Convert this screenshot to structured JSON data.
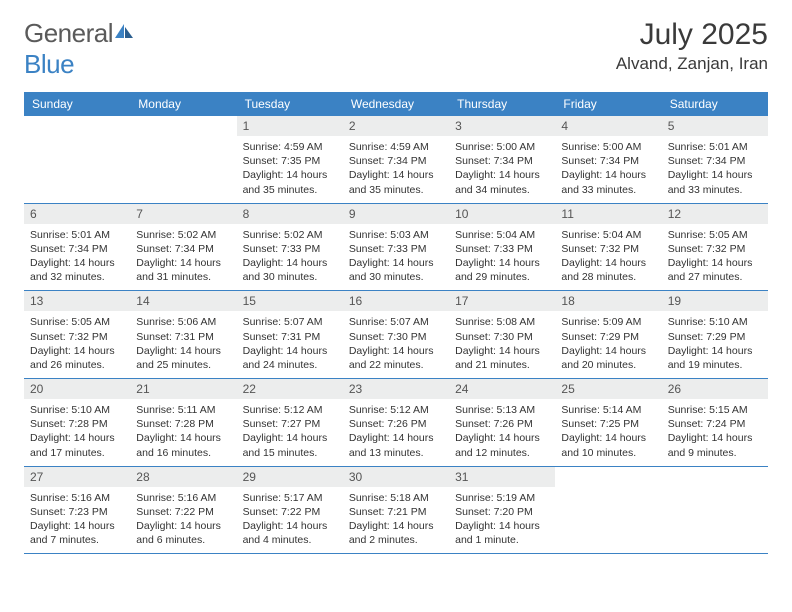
{
  "brand": {
    "word1": "General",
    "word2": "Blue"
  },
  "title": "July 2025",
  "location": "Alvand, Zanjan, Iran",
  "colors": {
    "header_bg": "#3b82c4",
    "header_text": "#ffffff",
    "daynum_bg": "#eceded",
    "cell_border": "#3b82c4",
    "brand_gray": "#5a5a5a",
    "brand_blue": "#3b82c4"
  },
  "dayNames": [
    "Sunday",
    "Monday",
    "Tuesday",
    "Wednesday",
    "Thursday",
    "Friday",
    "Saturday"
  ],
  "weeks": [
    [
      {
        "n": "",
        "sr": "",
        "ss": "",
        "dl": ""
      },
      {
        "n": "",
        "sr": "",
        "ss": "",
        "dl": ""
      },
      {
        "n": "1",
        "sr": "4:59 AM",
        "ss": "7:35 PM",
        "dl": "14 hours and 35 minutes."
      },
      {
        "n": "2",
        "sr": "4:59 AM",
        "ss": "7:34 PM",
        "dl": "14 hours and 35 minutes."
      },
      {
        "n": "3",
        "sr": "5:00 AM",
        "ss": "7:34 PM",
        "dl": "14 hours and 34 minutes."
      },
      {
        "n": "4",
        "sr": "5:00 AM",
        "ss": "7:34 PM",
        "dl": "14 hours and 33 minutes."
      },
      {
        "n": "5",
        "sr": "5:01 AM",
        "ss": "7:34 PM",
        "dl": "14 hours and 33 minutes."
      }
    ],
    [
      {
        "n": "6",
        "sr": "5:01 AM",
        "ss": "7:34 PM",
        "dl": "14 hours and 32 minutes."
      },
      {
        "n": "7",
        "sr": "5:02 AM",
        "ss": "7:34 PM",
        "dl": "14 hours and 31 minutes."
      },
      {
        "n": "8",
        "sr": "5:02 AM",
        "ss": "7:33 PM",
        "dl": "14 hours and 30 minutes."
      },
      {
        "n": "9",
        "sr": "5:03 AM",
        "ss": "7:33 PM",
        "dl": "14 hours and 30 minutes."
      },
      {
        "n": "10",
        "sr": "5:04 AM",
        "ss": "7:33 PM",
        "dl": "14 hours and 29 minutes."
      },
      {
        "n": "11",
        "sr": "5:04 AM",
        "ss": "7:32 PM",
        "dl": "14 hours and 28 minutes."
      },
      {
        "n": "12",
        "sr": "5:05 AM",
        "ss": "7:32 PM",
        "dl": "14 hours and 27 minutes."
      }
    ],
    [
      {
        "n": "13",
        "sr": "5:05 AM",
        "ss": "7:32 PM",
        "dl": "14 hours and 26 minutes."
      },
      {
        "n": "14",
        "sr": "5:06 AM",
        "ss": "7:31 PM",
        "dl": "14 hours and 25 minutes."
      },
      {
        "n": "15",
        "sr": "5:07 AM",
        "ss": "7:31 PM",
        "dl": "14 hours and 24 minutes."
      },
      {
        "n": "16",
        "sr": "5:07 AM",
        "ss": "7:30 PM",
        "dl": "14 hours and 22 minutes."
      },
      {
        "n": "17",
        "sr": "5:08 AM",
        "ss": "7:30 PM",
        "dl": "14 hours and 21 minutes."
      },
      {
        "n": "18",
        "sr": "5:09 AM",
        "ss": "7:29 PM",
        "dl": "14 hours and 20 minutes."
      },
      {
        "n": "19",
        "sr": "5:10 AM",
        "ss": "7:29 PM",
        "dl": "14 hours and 19 minutes."
      }
    ],
    [
      {
        "n": "20",
        "sr": "5:10 AM",
        "ss": "7:28 PM",
        "dl": "14 hours and 17 minutes."
      },
      {
        "n": "21",
        "sr": "5:11 AM",
        "ss": "7:28 PM",
        "dl": "14 hours and 16 minutes."
      },
      {
        "n": "22",
        "sr": "5:12 AM",
        "ss": "7:27 PM",
        "dl": "14 hours and 15 minutes."
      },
      {
        "n": "23",
        "sr": "5:12 AM",
        "ss": "7:26 PM",
        "dl": "14 hours and 13 minutes."
      },
      {
        "n": "24",
        "sr": "5:13 AM",
        "ss": "7:26 PM",
        "dl": "14 hours and 12 minutes."
      },
      {
        "n": "25",
        "sr": "5:14 AM",
        "ss": "7:25 PM",
        "dl": "14 hours and 10 minutes."
      },
      {
        "n": "26",
        "sr": "5:15 AM",
        "ss": "7:24 PM",
        "dl": "14 hours and 9 minutes."
      }
    ],
    [
      {
        "n": "27",
        "sr": "5:16 AM",
        "ss": "7:23 PM",
        "dl": "14 hours and 7 minutes."
      },
      {
        "n": "28",
        "sr": "5:16 AM",
        "ss": "7:22 PM",
        "dl": "14 hours and 6 minutes."
      },
      {
        "n": "29",
        "sr": "5:17 AM",
        "ss": "7:22 PM",
        "dl": "14 hours and 4 minutes."
      },
      {
        "n": "30",
        "sr": "5:18 AM",
        "ss": "7:21 PM",
        "dl": "14 hours and 2 minutes."
      },
      {
        "n": "31",
        "sr": "5:19 AM",
        "ss": "7:20 PM",
        "dl": "14 hours and 1 minute."
      },
      {
        "n": "",
        "sr": "",
        "ss": "",
        "dl": ""
      },
      {
        "n": "",
        "sr": "",
        "ss": "",
        "dl": ""
      }
    ]
  ],
  "labels": {
    "sunrise": "Sunrise:",
    "sunset": "Sunset:",
    "daylight": "Daylight:"
  }
}
